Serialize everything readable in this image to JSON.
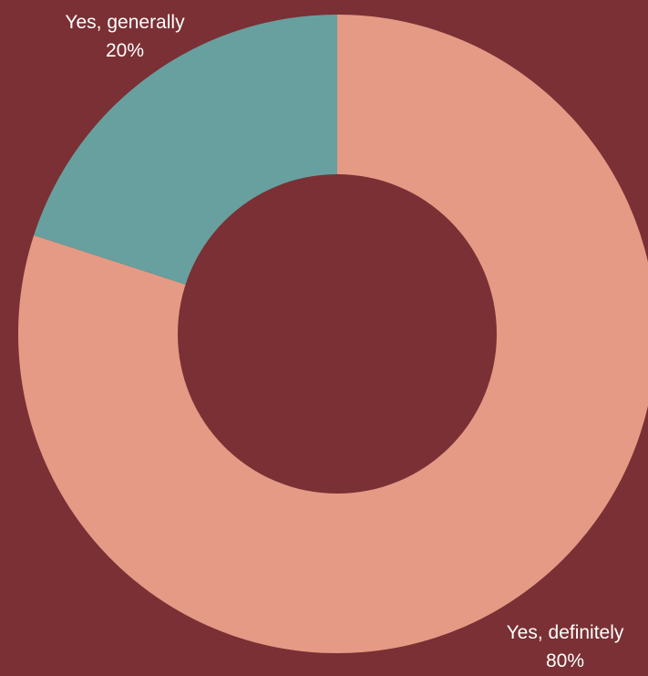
{
  "chart_data": {
    "type": "pie",
    "donut": true,
    "background_color": "#7a3034",
    "slices": [
      {
        "label": "Yes, definitely",
        "value": 80,
        "value_label": "80%",
        "color": "#e59a85"
      },
      {
        "label": "Yes, generally",
        "value": 20,
        "value_label": "20%",
        "color": "#67a09e"
      }
    ]
  }
}
